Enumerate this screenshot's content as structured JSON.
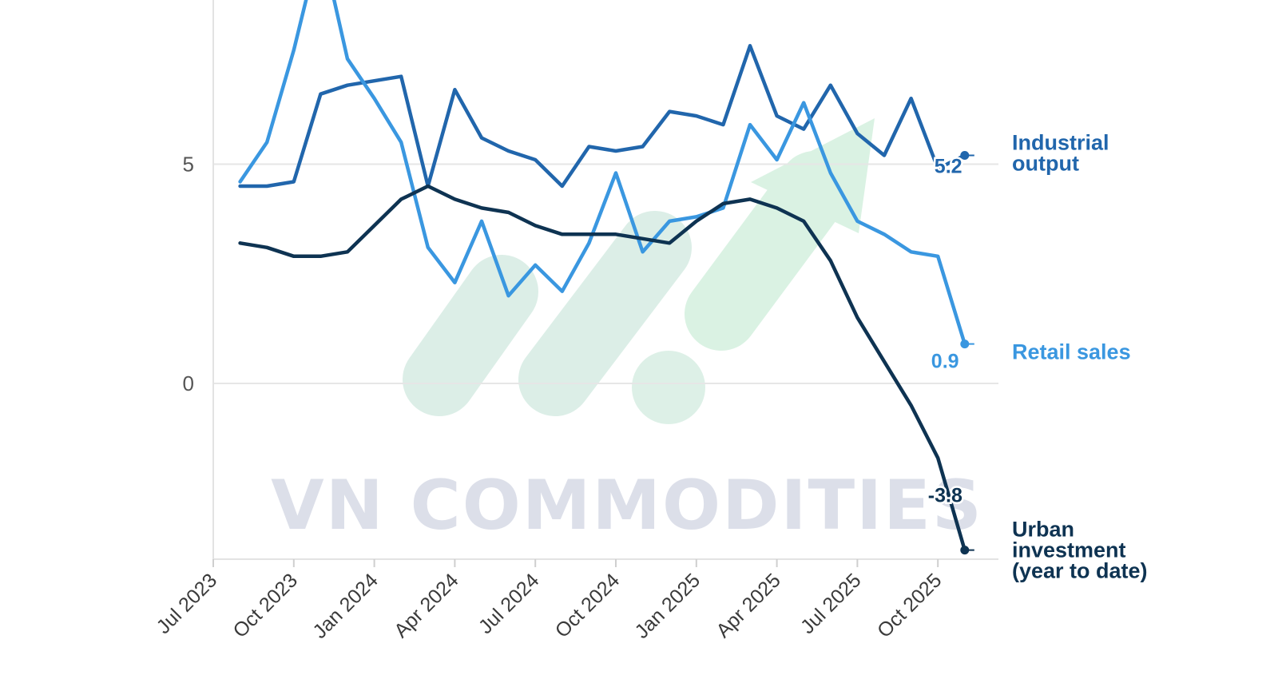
{
  "watermark": {
    "text": "VN COMMODITIES"
  },
  "chart_data": {
    "type": "line",
    "y_ticks": [
      0,
      5
    ],
    "x_ticks": [
      "Jul 2023",
      "Oct 2023",
      "Jan 2024",
      "Apr 2024",
      "Jul 2024",
      "Oct 2024",
      "Jan 2025",
      "Apr 2025",
      "Jul 2025",
      "Oct 2025"
    ],
    "grid": "horizontal",
    "ylim": [
      -4.1,
      8.8
    ],
    "x_months": [
      "Aug 2023",
      "Sep 2023",
      "Oct 2023",
      "Nov 2023",
      "Dec 2023",
      "Jan 2024",
      "Feb 2024",
      "Mar 2024",
      "Apr 2024",
      "May 2024",
      "Jun 2024",
      "Jul 2024",
      "Aug 2024",
      "Sep 2024",
      "Oct 2024",
      "Nov 2024",
      "Dec 2024",
      "Jan 2025",
      "Feb 2025",
      "Mar 2025",
      "Apr 2025",
      "May 2025",
      "Jun 2025",
      "Jul 2025",
      "Aug 2025",
      "Sep 2025",
      "Oct 2025",
      "Nov 2025"
    ],
    "series": [
      {
        "name": "Industrial output",
        "label_lines": [
          "Industrial",
          "output"
        ],
        "color": "#2166ac",
        "end_label": "5.2",
        "values": [
          4.5,
          4.5,
          4.6,
          6.6,
          6.8,
          6.9,
          7.0,
          4.5,
          6.7,
          5.6,
          5.3,
          5.1,
          4.5,
          5.4,
          5.3,
          5.4,
          6.2,
          6.1,
          5.9,
          7.7,
          6.1,
          5.8,
          6.8,
          5.7,
          5.2,
          6.5,
          4.9,
          5.2
        ]
      },
      {
        "name": "Retail sales",
        "label_lines": [
          "Retail sales"
        ],
        "color": "#3a97e0",
        "end_label": "0.9",
        "values": [
          4.6,
          5.5,
          7.6,
          10.1,
          7.4,
          6.5,
          5.5,
          3.1,
          2.3,
          3.7,
          2.0,
          2.7,
          2.1,
          3.2,
          4.8,
          3.0,
          3.7,
          3.8,
          4.0,
          5.9,
          5.1,
          6.4,
          4.8,
          3.7,
          3.4,
          3.0,
          2.9,
          0.9
        ]
      },
      {
        "name": "Urban investment (year to date)",
        "label_lines": [
          "Urban",
          "investment",
          "(year to date)"
        ],
        "color": "#0e3352",
        "end_label": "-3.8",
        "values": [
          3.2,
          3.1,
          2.9,
          2.9,
          3.0,
          3.6,
          4.2,
          4.5,
          4.2,
          4.0,
          3.9,
          3.6,
          3.4,
          3.4,
          3.4,
          3.3,
          3.2,
          3.7,
          4.1,
          4.2,
          4.0,
          3.7,
          2.8,
          1.5,
          0.5,
          -0.5,
          -1.7,
          -3.8
        ]
      }
    ]
  }
}
